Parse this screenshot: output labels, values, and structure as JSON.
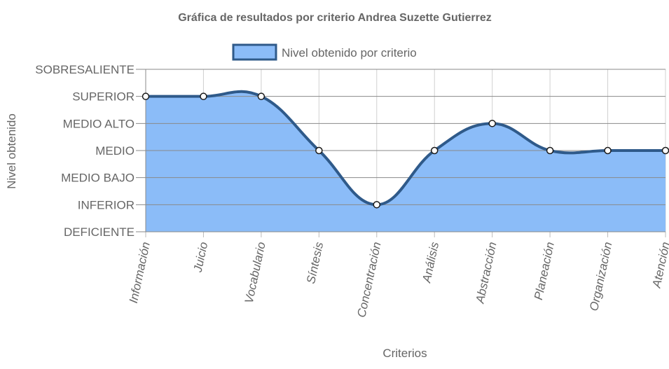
{
  "chart_data": {
    "type": "area",
    "title": "Gráfica de resultados por criterio Andrea Suzette Gutierrez",
    "xlabel": "Criterios",
    "ylabel": "Nivel obtenido",
    "categories": [
      "Información",
      "Juicio",
      "Vocabulario",
      "Síntesis",
      "Concentración",
      "Análisis",
      "Abstracción",
      "Planeación",
      "Organización",
      "Atención"
    ],
    "y_levels": [
      "DEFICIENTE",
      "INFERIOR",
      "MEDIO BAJO",
      "MEDIO",
      "MEDIO ALTO",
      "SUPERIOR",
      "SOBRESALIENTE"
    ],
    "ylim": [
      0,
      6
    ],
    "series": [
      {
        "name": "Nivel obtenido por criterio",
        "values": [
          5,
          5,
          5,
          3,
          1,
          3,
          4,
          3,
          3,
          3
        ]
      }
    ],
    "legend": "top",
    "grid": true,
    "colors": {
      "fill": "#8bbcf8",
      "line": "#2f5a8a",
      "point_fill": "#ffffff",
      "point_stroke": "#1a1a1a"
    }
  }
}
